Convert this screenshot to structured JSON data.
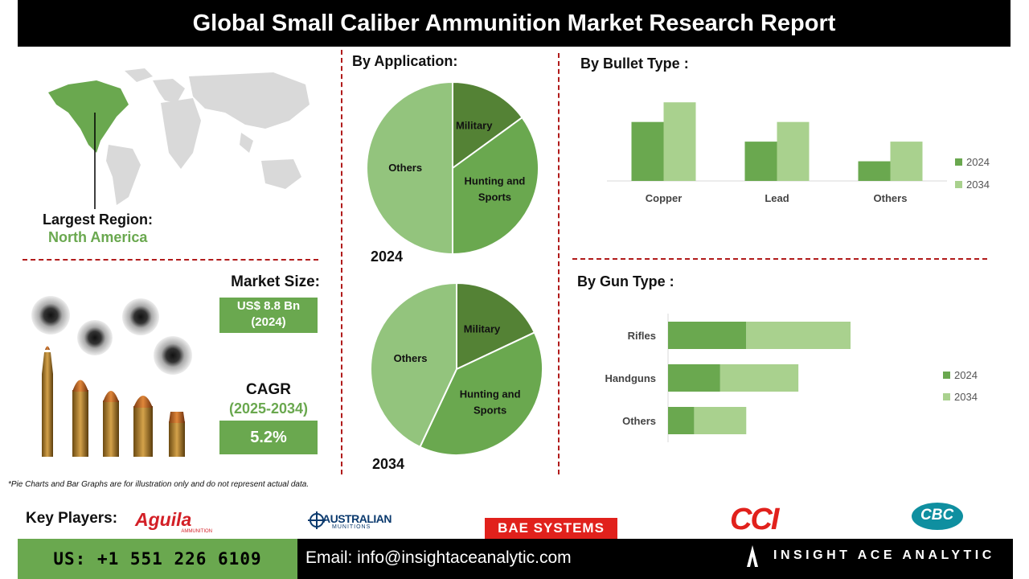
{
  "header": {
    "title": "Global Small Caliber Ammunition Market Research Report"
  },
  "region": {
    "label": "Largest Region:",
    "value": "North America"
  },
  "market_size": {
    "label": "Market Size:",
    "value_line1": "US$ 8.8 Bn",
    "value_line2": "(2024)"
  },
  "cagr": {
    "label": "CAGR",
    "period": "(2025-2034)",
    "value": "5.2%"
  },
  "application": {
    "heading": "By  Application:",
    "year_2024": "2024",
    "year_2034": "2034"
  },
  "bullet_type": {
    "heading": "By Bullet Type :"
  },
  "gun_type": {
    "heading": "By Gun Type :"
  },
  "disclaimer": "*Pie Charts and Bar Graphs are for illustration only and do not represent actual data.",
  "key_players": {
    "label": "Key Players:",
    "logos": [
      "Aguila",
      "AMMUNITION",
      "AUSTRALIAN",
      "MUNITIONS",
      "BAE SYSTEMS",
      "CCI",
      "CBC"
    ]
  },
  "footer": {
    "phone": "US: +1 551 226 6109",
    "email": "Email: info@insightaceanalytic.com",
    "brand": "INSIGHT ACE ANALYTIC"
  },
  "colors": {
    "dark_green": "#548235",
    "mid_green": "#6aa84f",
    "light_green": "#93c47d",
    "pale_green": "#a9d18e",
    "accent_red": "#b11b1b"
  },
  "chart_data": [
    {
      "type": "pie",
      "title": "2024",
      "slices": [
        {
          "label": "Military",
          "value": 15
        },
        {
          "label": "Hunting and Sports",
          "value": 35
        },
        {
          "label": "Others",
          "value": 50
        }
      ]
    },
    {
      "type": "pie",
      "title": "2034",
      "slices": [
        {
          "label": "Military",
          "value": 18
        },
        {
          "label": "Hunting and Sports",
          "value": 39
        },
        {
          "label": "Others",
          "value": 43
        }
      ]
    },
    {
      "type": "bar",
      "title": "",
      "categories": [
        "Copper",
        "Lead",
        "Others"
      ],
      "series": [
        {
          "name": "2024",
          "values": [
            3,
            2,
            1
          ]
        },
        {
          "name": "2034",
          "values": [
            4,
            3,
            2
          ]
        }
      ],
      "ylim": [
        0,
        4.5
      ],
      "legend": "right",
      "grid": false
    },
    {
      "type": "bar",
      "orientation": "horizontal",
      "stacked": true,
      "title": "",
      "categories": [
        "Rifles",
        "Handguns",
        "Others"
      ],
      "series": [
        {
          "name": "2024",
          "values": [
            3,
            2,
            1
          ]
        },
        {
          "name": "2034",
          "values": [
            4,
            3,
            2
          ]
        }
      ],
      "xlim": [
        0,
        7
      ],
      "legend": "right",
      "grid": false
    }
  ]
}
